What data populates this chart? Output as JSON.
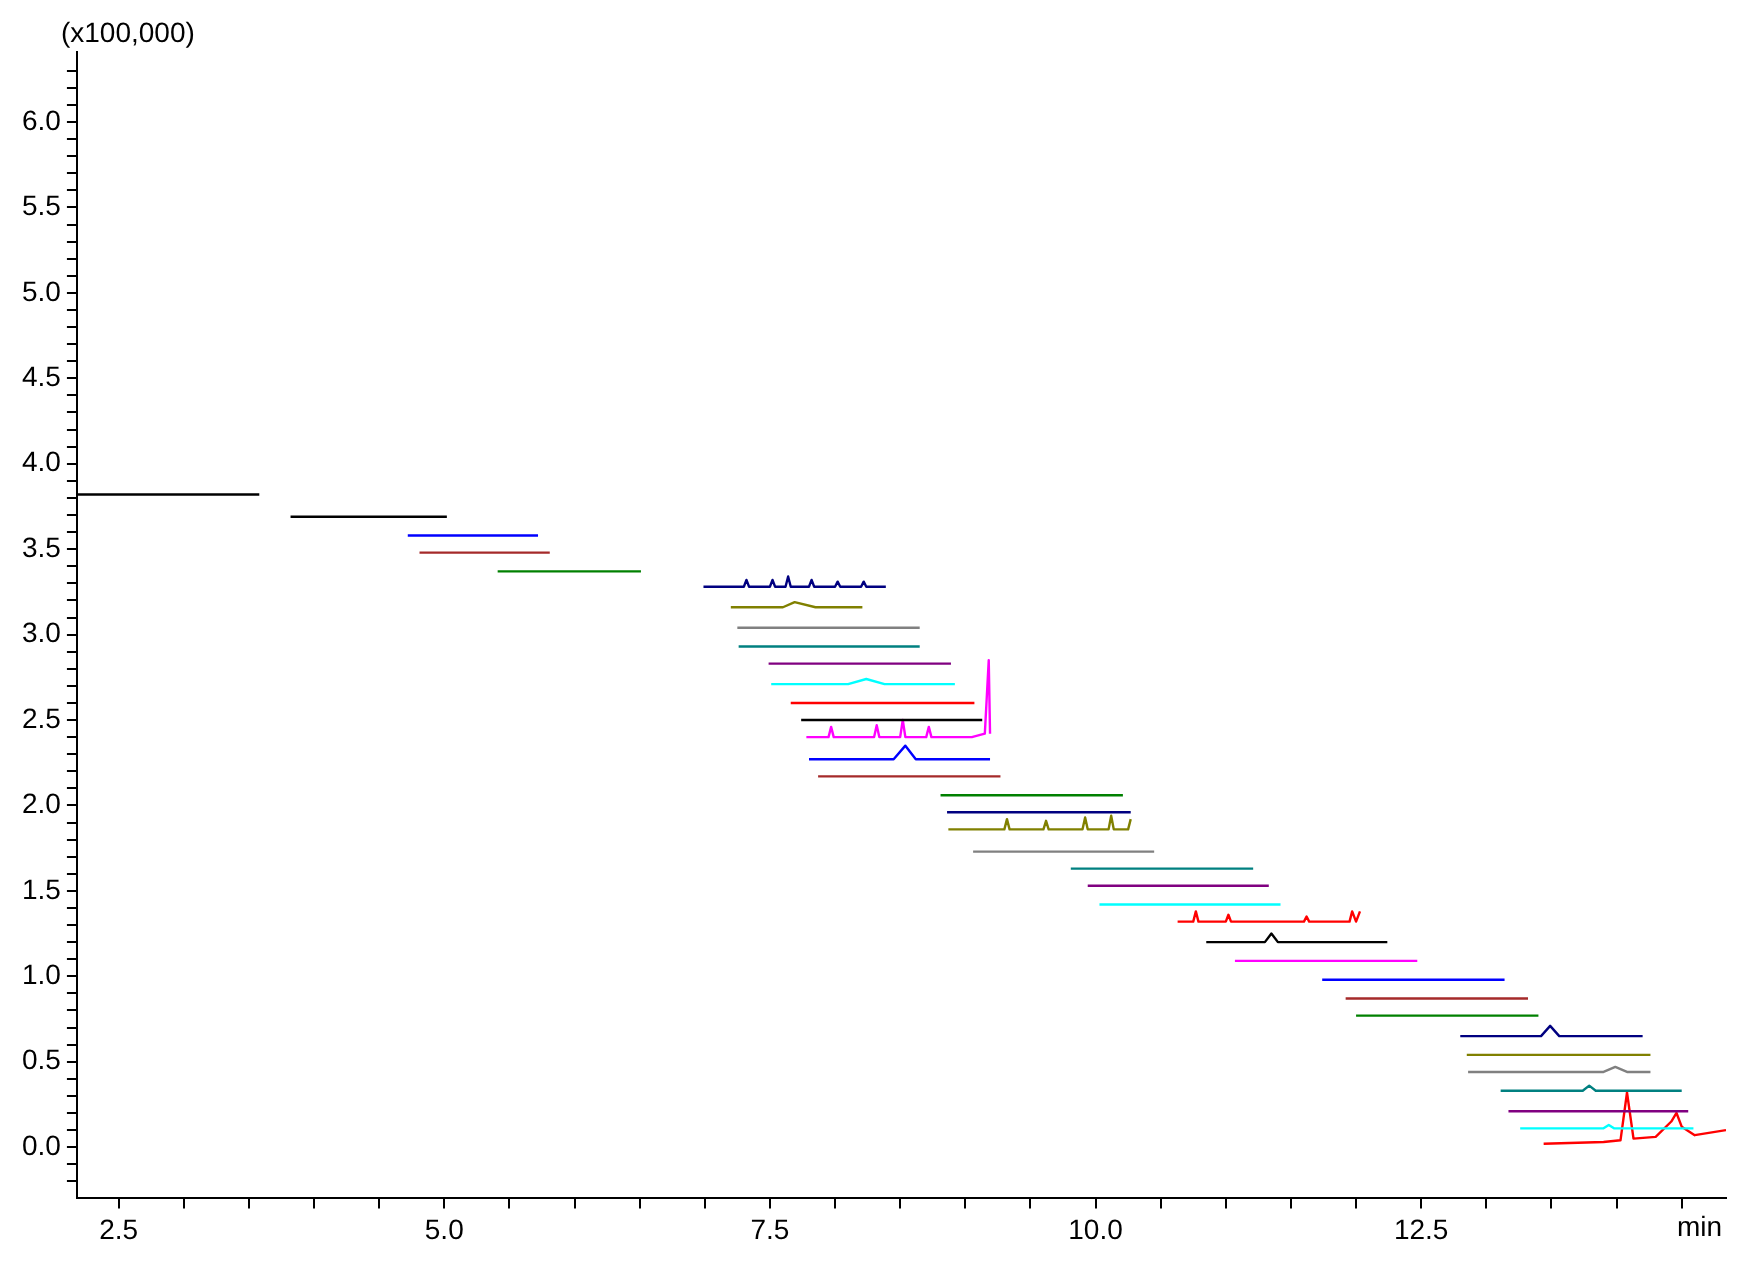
{
  "chart_data": {
    "type": "line",
    "xlabel": "min",
    "ylabel": "(x100,000)",
    "marker": "none",
    "grid": false,
    "legend": false,
    "xlim": [
      2.18,
      14.84
    ],
    "ylim": [
      -0.3,
      6.41
    ],
    "xticks": [
      {
        "value": 2.5,
        "label": "2.5"
      },
      {
        "value": 3.0,
        "label": null
      },
      {
        "value": 3.5,
        "label": null
      },
      {
        "value": 4.0,
        "label": null
      },
      {
        "value": 4.5,
        "label": null
      },
      {
        "value": 5.0,
        "label": "5.0"
      },
      {
        "value": 5.5,
        "label": null
      },
      {
        "value": 6.0,
        "label": null
      },
      {
        "value": 6.5,
        "label": null
      },
      {
        "value": 7.0,
        "label": null
      },
      {
        "value": 7.5,
        "label": "7.5"
      },
      {
        "value": 8.0,
        "label": null
      },
      {
        "value": 8.5,
        "label": null
      },
      {
        "value": 9.0,
        "label": null
      },
      {
        "value": 9.5,
        "label": null
      },
      {
        "value": 10.0,
        "label": "10.0"
      },
      {
        "value": 10.5,
        "label": null
      },
      {
        "value": 11.0,
        "label": null
      },
      {
        "value": 11.5,
        "label": null
      },
      {
        "value": 12.0,
        "label": null
      },
      {
        "value": 12.5,
        "label": "12.5"
      },
      {
        "value": 13.0,
        "label": null
      },
      {
        "value": 13.5,
        "label": null
      },
      {
        "value": 14.0,
        "label": null
      },
      {
        "value": 14.5,
        "label": null
      }
    ],
    "yticks": [
      {
        "value": -0.2,
        "label": null
      },
      {
        "value": -0.1,
        "label": null
      },
      {
        "value": 0.0,
        "label": "0.0"
      },
      {
        "value": 0.1,
        "label": null
      },
      {
        "value": 0.2,
        "label": null
      },
      {
        "value": 0.3,
        "label": null
      },
      {
        "value": 0.4,
        "label": null
      },
      {
        "value": 0.5,
        "label": "0.5"
      },
      {
        "value": 0.6,
        "label": null
      },
      {
        "value": 0.7,
        "label": null
      },
      {
        "value": 0.8,
        "label": null
      },
      {
        "value": 0.9,
        "label": null
      },
      {
        "value": 1.0,
        "label": "1.0"
      },
      {
        "value": 1.1,
        "label": null
      },
      {
        "value": 1.2,
        "label": null
      },
      {
        "value": 1.3,
        "label": null
      },
      {
        "value": 1.4,
        "label": null
      },
      {
        "value": 1.5,
        "label": "1.5"
      },
      {
        "value": 1.6,
        "label": null
      },
      {
        "value": 1.7,
        "label": null
      },
      {
        "value": 1.8,
        "label": null
      },
      {
        "value": 1.9,
        "label": null
      },
      {
        "value": 2.0,
        "label": "2.0"
      },
      {
        "value": 2.1,
        "label": null
      },
      {
        "value": 2.2,
        "label": null
      },
      {
        "value": 2.3,
        "label": null
      },
      {
        "value": 2.4,
        "label": null
      },
      {
        "value": 2.5,
        "label": "2.5"
      },
      {
        "value": 2.6,
        "label": null
      },
      {
        "value": 2.7,
        "label": null
      },
      {
        "value": 2.8,
        "label": null
      },
      {
        "value": 2.9,
        "label": null
      },
      {
        "value": 3.0,
        "label": "3.0"
      },
      {
        "value": 3.1,
        "label": null
      },
      {
        "value": 3.2,
        "label": null
      },
      {
        "value": 3.3,
        "label": null
      },
      {
        "value": 3.4,
        "label": null
      },
      {
        "value": 3.5,
        "label": "3.5"
      },
      {
        "value": 3.6,
        "label": null
      },
      {
        "value": 3.7,
        "label": null
      },
      {
        "value": 3.8,
        "label": null
      },
      {
        "value": 3.9,
        "label": null
      },
      {
        "value": 4.0,
        "label": "4.0"
      },
      {
        "value": 4.1,
        "label": null
      },
      {
        "value": 4.2,
        "label": null
      },
      {
        "value": 4.3,
        "label": null
      },
      {
        "value": 4.4,
        "label": null
      },
      {
        "value": 4.5,
        "label": "4.5"
      },
      {
        "value": 4.6,
        "label": null
      },
      {
        "value": 4.7,
        "label": null
      },
      {
        "value": 4.8,
        "label": null
      },
      {
        "value": 4.9,
        "label": null
      },
      {
        "value": 5.0,
        "label": "5.0"
      },
      {
        "value": 5.1,
        "label": null
      },
      {
        "value": 5.2,
        "label": null
      },
      {
        "value": 5.3,
        "label": null
      },
      {
        "value": 5.4,
        "label": null
      },
      {
        "value": 5.5,
        "label": "5.5"
      },
      {
        "value": 5.6,
        "label": null
      },
      {
        "value": 5.7,
        "label": null
      },
      {
        "value": 5.8,
        "label": null
      },
      {
        "value": 5.9,
        "label": null
      },
      {
        "value": 6.0,
        "label": "6.0"
      },
      {
        "value": 6.1,
        "label": null
      },
      {
        "value": 6.2,
        "label": null
      },
      {
        "value": 6.3,
        "label": null
      }
    ],
    "series": [
      {
        "color": "#000000",
        "x": [
          2.18,
          3.58
        ],
        "values": [
          3.82,
          3.82
        ]
      },
      {
        "color": "#000000",
        "x": [
          3.82,
          5.02
        ],
        "values": [
          3.69,
          3.69
        ]
      },
      {
        "color": "#0000ff",
        "x": [
          4.72,
          5.72
        ],
        "values": [
          3.58,
          3.58
        ]
      },
      {
        "color": "#a52a2a",
        "x": [
          4.81,
          5.81
        ],
        "values": [
          3.48,
          3.48
        ]
      },
      {
        "color": "#008000",
        "x": [
          5.41,
          6.51
        ],
        "values": [
          3.37,
          3.37
        ]
      },
      {
        "color": "#000080",
        "x": [
          6.99,
          7.3,
          7.32,
          7.34,
          7.5,
          7.52,
          7.54,
          7.62,
          7.64,
          7.66,
          7.8,
          7.82,
          7.84,
          8.0,
          8.02,
          8.04,
          8.2,
          8.22,
          8.24,
          8.39
        ],
        "values": [
          3.28,
          3.28,
          3.32,
          3.28,
          3.28,
          3.32,
          3.28,
          3.28,
          3.34,
          3.28,
          3.28,
          3.32,
          3.28,
          3.28,
          3.31,
          3.28,
          3.28,
          3.31,
          3.28,
          3.28
        ]
      },
      {
        "color": "#808000",
        "x": [
          7.2,
          7.6,
          7.69,
          7.85,
          8.21
        ],
        "values": [
          3.16,
          3.16,
          3.19,
          3.16,
          3.16
        ]
      },
      {
        "color": "#808080",
        "x": [
          7.25,
          8.65
        ],
        "values": [
          3.04,
          3.04
        ]
      },
      {
        "color": "#008080",
        "x": [
          7.26,
          8.65
        ],
        "values": [
          2.93,
          2.93
        ]
      },
      {
        "color": "#800080",
        "x": [
          7.49,
          8.89
        ],
        "values": [
          2.83,
          2.83
        ]
      },
      {
        "color": "#00ffff",
        "x": [
          7.51,
          8.1,
          8.24,
          8.38,
          8.92
        ],
        "values": [
          2.71,
          2.71,
          2.74,
          2.71,
          2.71
        ]
      },
      {
        "color": "#ff0000",
        "x": [
          7.66,
          9.07
        ],
        "values": [
          2.6,
          2.6
        ]
      },
      {
        "color": "#000000",
        "x": [
          7.74,
          9.13
        ],
        "values": [
          2.5,
          2.5
        ]
      },
      {
        "color": "#ff00ff",
        "x": [
          7.78,
          7.95,
          7.97,
          7.99,
          8.3,
          8.32,
          8.34,
          8.5,
          8.52,
          8.54,
          8.7,
          8.72,
          8.74,
          9.05,
          9.15,
          9.18,
          9.19
        ],
        "values": [
          2.4,
          2.4,
          2.46,
          2.4,
          2.4,
          2.47,
          2.4,
          2.4,
          2.5,
          2.4,
          2.4,
          2.46,
          2.4,
          2.4,
          2.42,
          2.85,
          2.42
        ]
      },
      {
        "color": "#0000ff",
        "x": [
          7.8,
          8.45,
          8.54,
          8.62,
          9.19
        ],
        "values": [
          2.27,
          2.27,
          2.35,
          2.27,
          2.27
        ]
      },
      {
        "color": "#a52a2a",
        "x": [
          7.87,
          9.27
        ],
        "values": [
          2.17,
          2.17
        ]
      },
      {
        "color": "#008000",
        "x": [
          8.81,
          10.21
        ],
        "values": [
          2.06,
          2.06
        ]
      },
      {
        "color": "#000080",
        "x": [
          8.86,
          10.27
        ],
        "values": [
          1.96,
          1.96
        ]
      },
      {
        "color": "#808000",
        "x": [
          8.87,
          9.3,
          9.32,
          9.34,
          9.6,
          9.62,
          9.64,
          9.9,
          9.92,
          9.94,
          10.1,
          10.12,
          10.14,
          10.25,
          10.27
        ],
        "values": [
          1.86,
          1.86,
          1.92,
          1.86,
          1.86,
          1.91,
          1.86,
          1.86,
          1.93,
          1.86,
          1.86,
          1.94,
          1.86,
          1.86,
          1.92
        ]
      },
      {
        "color": "#808080",
        "x": [
          9.06,
          10.45
        ],
        "values": [
          1.73,
          1.73
        ]
      },
      {
        "color": "#008080",
        "x": [
          9.81,
          11.21
        ],
        "values": [
          1.63,
          1.63
        ]
      },
      {
        "color": "#800080",
        "x": [
          9.94,
          11.33
        ],
        "values": [
          1.53,
          1.53
        ]
      },
      {
        "color": "#00ffff",
        "x": [
          10.03,
          11.42
        ],
        "values": [
          1.42,
          1.42
        ]
      },
      {
        "color": "#ff0000",
        "x": [
          10.63,
          10.75,
          10.77,
          10.79,
          11.0,
          11.02,
          11.04,
          11.6,
          11.62,
          11.64,
          11.95,
          11.97,
          12.0,
          12.03
        ],
        "values": [
          1.32,
          1.32,
          1.38,
          1.32,
          1.32,
          1.36,
          1.32,
          1.32,
          1.35,
          1.32,
          1.32,
          1.38,
          1.32,
          1.38
        ]
      },
      {
        "color": "#000000",
        "x": [
          10.85,
          11.3,
          11.35,
          11.4,
          12.24
        ],
        "values": [
          1.2,
          1.2,
          1.25,
          1.2,
          1.2
        ]
      },
      {
        "color": "#ff00ff",
        "x": [
          11.07,
          12.47
        ],
        "values": [
          1.09,
          1.09
        ]
      },
      {
        "color": "#0000ff",
        "x": [
          11.74,
          13.14
        ],
        "values": [
          0.98,
          0.98
        ]
      },
      {
        "color": "#a52a2a",
        "x": [
          11.92,
          13.32
        ],
        "values": [
          0.87,
          0.87
        ]
      },
      {
        "color": "#008000",
        "x": [
          12.0,
          13.4
        ],
        "values": [
          0.77,
          0.77
        ]
      },
      {
        "color": "#000080",
        "x": [
          12.8,
          13.42,
          13.49,
          13.56,
          14.2
        ],
        "values": [
          0.65,
          0.65,
          0.71,
          0.65,
          0.65
        ]
      },
      {
        "color": "#808000",
        "x": [
          12.85,
          14.26
        ],
        "values": [
          0.54,
          0.54
        ]
      },
      {
        "color": "#808080",
        "x": [
          12.86,
          13.9,
          13.99,
          14.08,
          14.26
        ],
        "values": [
          0.44,
          0.44,
          0.47,
          0.44,
          0.44
        ]
      },
      {
        "color": "#008080",
        "x": [
          13.11,
          13.74,
          13.79,
          13.84,
          14.5
        ],
        "values": [
          0.33,
          0.33,
          0.36,
          0.33,
          0.33
        ]
      },
      {
        "color": "#800080",
        "x": [
          13.17,
          14.55
        ],
        "values": [
          0.21,
          0.21
        ]
      },
      {
        "color": "#00ffff",
        "x": [
          13.26,
          13.9,
          13.94,
          13.98,
          14.59
        ],
        "values": [
          0.11,
          0.11,
          0.13,
          0.11,
          0.11
        ]
      },
      {
        "color": "#ff0000",
        "x": [
          13.44,
          13.9,
          14.03,
          14.08,
          14.13,
          14.3,
          14.42,
          14.46,
          14.5,
          14.6,
          14.84
        ],
        "values": [
          0.02,
          0.03,
          0.04,
          0.32,
          0.05,
          0.06,
          0.15,
          0.2,
          0.12,
          0.07,
          0.1
        ]
      }
    ]
  }
}
